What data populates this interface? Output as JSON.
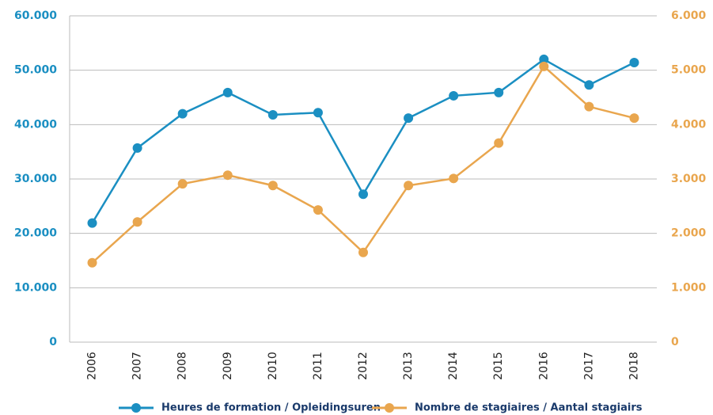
{
  "chart_data": {
    "type": "line",
    "categories": [
      "2006",
      "2007",
      "2008",
      "2009",
      "2010",
      "2011",
      "2012",
      "2013",
      "2014",
      "2015",
      "2016",
      "2017",
      "2018"
    ],
    "series": [
      {
        "name": "Heures de formation / Opleidingsuren",
        "color": "#1b8fc2",
        "values": [
          21900,
          35700,
          42000,
          45900,
          41800,
          42200,
          27200,
          41200,
          45300,
          45900,
          52000,
          47300,
          51400
        ]
      },
      {
        "name": "Nombre de stagiaires / Aantal stagiairs",
        "color": "#e9a64e",
        "axis": "y2",
        "values": [
          1460,
          2210,
          2910,
          3070,
          2880,
          2430,
          1650,
          2880,
          3010,
          3660,
          5070,
          4330,
          4120
        ]
      }
    ],
    "ylim": [
      0,
      60000
    ],
    "yticks": [
      0,
      {
        "value": 10000,
        "label": "10.000"
      },
      {
        "value": 20000,
        "label": "20.000"
      },
      {
        "value": 30000,
        "label": "30.000"
      },
      {
        "value": 40000,
        "label": "40.000"
      },
      {
        "value": 50000,
        "label": "50.000"
      },
      {
        "value": 60000,
        "label": "60.000"
      }
    ],
    "y2lim": [
      0,
      6000
    ],
    "y2ticks": [
      0,
      {
        "value": 1000,
        "label": "1.000"
      },
      {
        "value": 2000,
        "label": "2.000"
      },
      {
        "value": 3000,
        "label": "3.000"
      },
      {
        "value": 4000,
        "label": "4.000"
      },
      {
        "value": 5000,
        "label": "5.000"
      },
      {
        "value": 6000,
        "label": "6.000"
      }
    ],
    "grid": true,
    "legend": "bottom"
  }
}
